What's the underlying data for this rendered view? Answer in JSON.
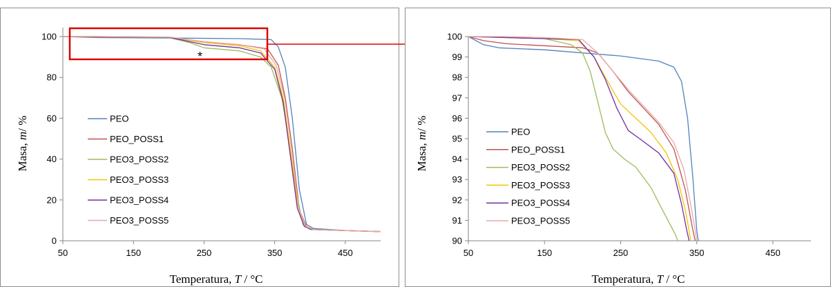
{
  "annotation": {
    "zoom_box_color": "#e00000",
    "mark": "*"
  },
  "chart_data": [
    {
      "type": "line",
      "title": "",
      "xlabel_parts": [
        "Temperatura, ",
        "T",
        " / °C"
      ],
      "ylabel_parts": [
        "Masa, ",
        "m",
        "/ %"
      ],
      "xlim": [
        50,
        500
      ],
      "ylim": [
        0,
        105
      ],
      "xticks": [
        50,
        150,
        250,
        350,
        450
      ],
      "yticks": [
        0,
        20,
        40,
        60,
        80,
        100
      ],
      "grid": false,
      "legend": "center-left",
      "series": [
        {
          "name": "PEO",
          "color": "#4f81bd",
          "points": [
            [
              50,
              100
            ],
            [
              100,
              99.5
            ],
            [
              200,
              99.3
            ],
            [
              300,
              99
            ],
            [
              345,
              98.5
            ],
            [
              355,
              95
            ],
            [
              365,
              85
            ],
            [
              375,
              60
            ],
            [
              385,
              25
            ],
            [
              395,
              8
            ],
            [
              405,
              6
            ],
            [
              450,
              5
            ],
            [
              500,
              4.5
            ]
          ]
        },
        {
          "name": "PEO_POSS1",
          "color": "#c0504d",
          "points": [
            [
              50,
              100
            ],
            [
              100,
              99.7
            ],
            [
              200,
              99.6
            ],
            [
              250,
              97.5
            ],
            [
              300,
              96
            ],
            [
              340,
              94
            ],
            [
              355,
              86
            ],
            [
              365,
              70
            ],
            [
              375,
              45
            ],
            [
              385,
              15
            ],
            [
              395,
              7
            ],
            [
              405,
              5.5
            ],
            [
              450,
              5
            ],
            [
              500,
              4.5
            ]
          ]
        },
        {
          "name": "PEO3_POSS2",
          "color": "#9bbb59",
          "points": [
            [
              50,
              100
            ],
            [
              100,
              100
            ],
            [
              200,
              99.5
            ],
            [
              230,
              97
            ],
            [
              250,
              94.5
            ],
            [
              300,
              93
            ],
            [
              330,
              90
            ],
            [
              345,
              85
            ],
            [
              360,
              70
            ],
            [
              370,
              50
            ],
            [
              380,
              25
            ],
            [
              390,
              8
            ],
            [
              400,
              5.5
            ],
            [
              450,
              5
            ],
            [
              500,
              4.5
            ]
          ]
        },
        {
          "name": "PEO3_POSS3",
          "color": "#f5c200",
          "points": [
            [
              50,
              100
            ],
            [
              100,
              100
            ],
            [
              200,
              99.8
            ],
            [
              250,
              97
            ],
            [
              300,
              95.5
            ],
            [
              330,
              93
            ],
            [
              350,
              85
            ],
            [
              362,
              70
            ],
            [
              372,
              45
            ],
            [
              382,
              18
            ],
            [
              392,
              7
            ],
            [
              402,
              5.5
            ],
            [
              450,
              5
            ],
            [
              500,
              4.5
            ]
          ]
        },
        {
          "name": "PEO3_POSS4",
          "color": "#7030a0",
          "points": [
            [
              50,
              100
            ],
            [
              100,
              100
            ],
            [
              200,
              99.7
            ],
            [
              250,
              96
            ],
            [
              300,
              94.5
            ],
            [
              330,
              92
            ],
            [
              350,
              84
            ],
            [
              362,
              68
            ],
            [
              372,
              42
            ],
            [
              382,
              16
            ],
            [
              392,
              7
            ],
            [
              402,
              5.5
            ],
            [
              450,
              5
            ],
            [
              500,
              4.5
            ]
          ]
        },
        {
          "name": "PEO3_POSS5",
          "color": "#e6a8a8",
          "points": [
            [
              50,
              100
            ],
            [
              100,
              100
            ],
            [
              200,
              99.8
            ],
            [
              250,
              97.5
            ],
            [
              300,
              96
            ],
            [
              335,
              94
            ],
            [
              352,
              86
            ],
            [
              364,
              70
            ],
            [
              374,
              45
            ],
            [
              384,
              16
            ],
            [
              394,
              7
            ],
            [
              404,
              5.5
            ],
            [
              450,
              5
            ],
            [
              500,
              4.5
            ]
          ]
        }
      ]
    },
    {
      "type": "line",
      "title": "",
      "xlabel_parts": [
        "Temperatura, ",
        "T",
        " / °C"
      ],
      "ylabel_parts": [
        "Masa, ",
        "m",
        "/ %"
      ],
      "xlim": [
        50,
        500
      ],
      "ylim": [
        90,
        100
      ],
      "xticks": [
        50,
        150,
        250,
        350,
        450
      ],
      "yticks": [
        90,
        91,
        92,
        93,
        94,
        95,
        96,
        97,
        98,
        99,
        100
      ],
      "grid": false,
      "legend": "center-left",
      "series": [
        {
          "name": "PEO",
          "color": "#4f81bd",
          "points": [
            [
              50,
              100
            ],
            [
              70,
              99.6
            ],
            [
              90,
              99.45
            ],
            [
              150,
              99.35
            ],
            [
              200,
              99.2
            ],
            [
              250,
              99.05
            ],
            [
              300,
              98.8
            ],
            [
              320,
              98.5
            ],
            [
              330,
              97.8
            ],
            [
              338,
              96
            ],
            [
              345,
              93
            ],
            [
              350,
              90.5
            ],
            [
              352,
              90
            ]
          ]
        },
        {
          "name": "PEO_POSS1",
          "color": "#c0504d",
          "points": [
            [
              50,
              100
            ],
            [
              70,
              99.8
            ],
            [
              100,
              99.65
            ],
            [
              150,
              99.55
            ],
            [
              200,
              99.45
            ],
            [
              220,
              99.2
            ],
            [
              240,
              98.3
            ],
            [
              260,
              97.3
            ],
            [
              280,
              96.5
            ],
            [
              300,
              95.7
            ],
            [
              320,
              94.5
            ],
            [
              335,
              92.5
            ],
            [
              345,
              90.5
            ],
            [
              348,
              90
            ]
          ]
        },
        {
          "name": "PEO3_POSS2",
          "color": "#9bbb59",
          "points": [
            [
              50,
              100
            ],
            [
              100,
              99.95
            ],
            [
              150,
              99.9
            ],
            [
              185,
              99.6
            ],
            [
              200,
              99.2
            ],
            [
              210,
              98.3
            ],
            [
              220,
              96.8
            ],
            [
              230,
              95.3
            ],
            [
              240,
              94.5
            ],
            [
              255,
              94
            ],
            [
              270,
              93.6
            ],
            [
              290,
              92.6
            ],
            [
              305,
              91.5
            ],
            [
              315,
              90.8
            ],
            [
              322,
              90.3
            ],
            [
              325,
              90
            ]
          ]
        },
        {
          "name": "PEO3_POSS3",
          "color": "#f5c200",
          "points": [
            [
              50,
              100
            ],
            [
              100,
              99.95
            ],
            [
              150,
              99.9
            ],
            [
              195,
              99.8
            ],
            [
              215,
              99
            ],
            [
              230,
              98
            ],
            [
              250,
              96.7
            ],
            [
              270,
              96
            ],
            [
              290,
              95.3
            ],
            [
              310,
              94.3
            ],
            [
              325,
              93
            ],
            [
              335,
              91.5
            ],
            [
              340,
              90.5
            ],
            [
              342,
              90
            ]
          ]
        },
        {
          "name": "PEO3_POSS4",
          "color": "#7030a0",
          "points": [
            [
              50,
              100
            ],
            [
              100,
              99.95
            ],
            [
              150,
              99.9
            ],
            [
              195,
              99.85
            ],
            [
              215,
              99
            ],
            [
              230,
              97.9
            ],
            [
              245,
              96.5
            ],
            [
              260,
              95.4
            ],
            [
              275,
              95
            ],
            [
              300,
              94.3
            ],
            [
              320,
              93.3
            ],
            [
              330,
              91.8
            ],
            [
              337,
              90.5
            ],
            [
              340,
              90
            ]
          ]
        },
        {
          "name": "PEO3_POSS5",
          "color": "#e6a8a8",
          "points": [
            [
              50,
              100
            ],
            [
              100,
              100
            ],
            [
              150,
              99.95
            ],
            [
              200,
              99.85
            ],
            [
              220,
              99.2
            ],
            [
              240,
              98.3
            ],
            [
              260,
              97.4
            ],
            [
              280,
              96.6
            ],
            [
              300,
              95.8
            ],
            [
              320,
              94.8
            ],
            [
              333,
              93.5
            ],
            [
              342,
              91.8
            ],
            [
              348,
              90.5
            ],
            [
              350,
              90
            ]
          ]
        }
      ]
    }
  ]
}
